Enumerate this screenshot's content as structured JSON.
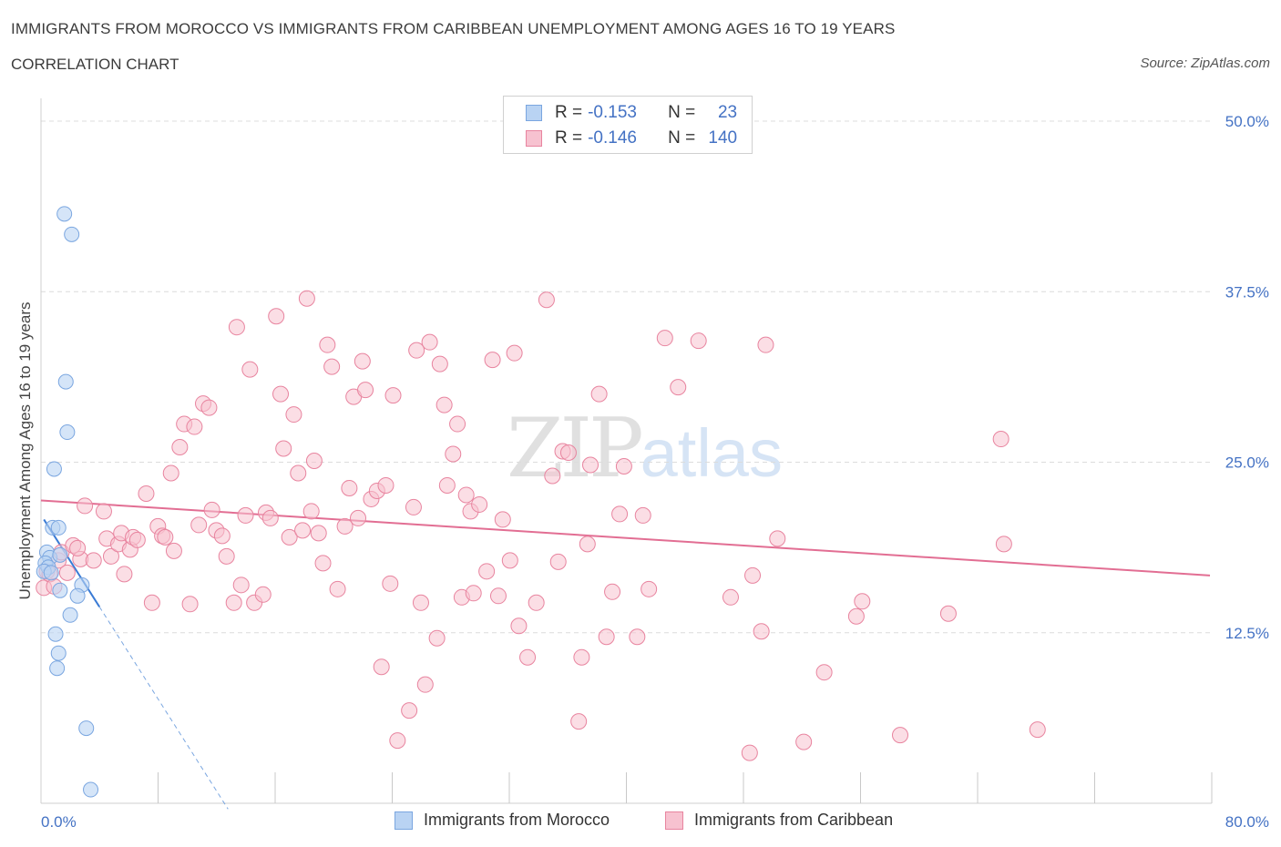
{
  "chart_data": {
    "type": "scatter",
    "title": "IMMIGRANTS FROM MOROCCO VS IMMIGRANTS FROM CARIBBEAN UNEMPLOYMENT AMONG AGES 16 TO 19 YEARS",
    "subtitle": "CORRELATION CHART",
    "source": "Source: ZipAtlas.com",
    "ylabel": "Unemployment Among Ages 16 to 19 years",
    "xlim": [
      0,
      80
    ],
    "ylim": [
      0,
      50
    ],
    "y_ticks": [
      {
        "value": 12.5,
        "label": "12.5%"
      },
      {
        "value": 25,
        "label": "25.0%"
      },
      {
        "value": 37.5,
        "label": "37.5%"
      },
      {
        "value": 50,
        "label": "50.0%"
      }
    ],
    "x_tick_labels": {
      "min": "0.0%",
      "max": "80.0%"
    },
    "watermark": {
      "zip": "ZIP",
      "atlas": "atlas"
    },
    "legend": [
      {
        "r_label": "R =",
        "r_value": "-0.153",
        "n_label": "N =",
        "n_value": "23"
      },
      {
        "r_label": "R =",
        "r_value": "-0.146",
        "n_label": "N =",
        "n_value": "140"
      }
    ],
    "series": [
      {
        "name": "Immigrants from Morocco",
        "color": "#7aa6e0",
        "fill": "#b9d3f3",
        "trend": {
          "x0": 0.2,
          "y0": 20.8,
          "x1": 4.0,
          "y1": 14.4,
          "dash_to_x": 12.8
        },
        "points": [
          {
            "x": 1.6,
            "y": 43.2
          },
          {
            "x": 2.1,
            "y": 41.7
          },
          {
            "x": 1.7,
            "y": 30.9
          },
          {
            "x": 1.8,
            "y": 27.2
          },
          {
            "x": 0.9,
            "y": 24.5
          },
          {
            "x": 0.8,
            "y": 20.2
          },
          {
            "x": 1.2,
            "y": 20.2
          },
          {
            "x": 0.4,
            "y": 18.4
          },
          {
            "x": 0.6,
            "y": 18.0
          },
          {
            "x": 0.3,
            "y": 17.6
          },
          {
            "x": 0.5,
            "y": 17.3
          },
          {
            "x": 0.2,
            "y": 17.0
          },
          {
            "x": 0.7,
            "y": 16.9
          },
          {
            "x": 2.8,
            "y": 16.0
          },
          {
            "x": 1.3,
            "y": 15.6
          },
          {
            "x": 2.5,
            "y": 15.2
          },
          {
            "x": 2.0,
            "y": 13.8
          },
          {
            "x": 1.0,
            "y": 12.4
          },
          {
            "x": 1.2,
            "y": 11.0
          },
          {
            "x": 1.1,
            "y": 9.9
          },
          {
            "x": 3.1,
            "y": 5.5
          },
          {
            "x": 3.4,
            "y": 1.0
          },
          {
            "x": 1.3,
            "y": 18.2
          }
        ]
      },
      {
        "name": "Immigrants from Caribbean",
        "color": "#e8849f",
        "fill": "#f7c2d0",
        "trend": {
          "x0": 0,
          "y0": 22.2,
          "x1": 80,
          "y1": 16.7
        },
        "points": [
          {
            "x": 0.2,
            "y": 15.8
          },
          {
            "x": 0.4,
            "y": 17.0
          },
          {
            "x": 0.6,
            "y": 16.8
          },
          {
            "x": 1.2,
            "y": 17.8
          },
          {
            "x": 1.4,
            "y": 18.4
          },
          {
            "x": 1.8,
            "y": 16.9
          },
          {
            "x": 2.2,
            "y": 18.9
          },
          {
            "x": 2.7,
            "y": 17.9
          },
          {
            "x": 3.0,
            "y": 21.8
          },
          {
            "x": 3.6,
            "y": 17.8
          },
          {
            "x": 4.3,
            "y": 21.4
          },
          {
            "x": 4.5,
            "y": 19.4
          },
          {
            "x": 4.8,
            "y": 18.1
          },
          {
            "x": 5.3,
            "y": 19.0
          },
          {
            "x": 5.5,
            "y": 19.8
          },
          {
            "x": 5.7,
            "y": 16.8
          },
          {
            "x": 6.1,
            "y": 18.6
          },
          {
            "x": 6.3,
            "y": 19.5
          },
          {
            "x": 6.6,
            "y": 19.3
          },
          {
            "x": 7.2,
            "y": 22.7
          },
          {
            "x": 7.6,
            "y": 14.7
          },
          {
            "x": 8.0,
            "y": 20.3
          },
          {
            "x": 8.3,
            "y": 19.6
          },
          {
            "x": 8.5,
            "y": 19.5
          },
          {
            "x": 8.9,
            "y": 24.2
          },
          {
            "x": 9.1,
            "y": 18.5
          },
          {
            "x": 9.5,
            "y": 26.1
          },
          {
            "x": 9.8,
            "y": 27.8
          },
          {
            "x": 10.2,
            "y": 14.6
          },
          {
            "x": 10.5,
            "y": 27.6
          },
          {
            "x": 10.8,
            "y": 20.4
          },
          {
            "x": 11.1,
            "y": 29.3
          },
          {
            "x": 11.5,
            "y": 29.0
          },
          {
            "x": 11.7,
            "y": 21.5
          },
          {
            "x": 12.0,
            "y": 20.0
          },
          {
            "x": 12.4,
            "y": 19.6
          },
          {
            "x": 12.7,
            "y": 18.1
          },
          {
            "x": 13.2,
            "y": 14.7
          },
          {
            "x": 13.4,
            "y": 34.9
          },
          {
            "x": 13.7,
            "y": 16.0
          },
          {
            "x": 14.0,
            "y": 21.1
          },
          {
            "x": 14.3,
            "y": 31.8
          },
          {
            "x": 14.6,
            "y": 14.7
          },
          {
            "x": 15.2,
            "y": 15.3
          },
          {
            "x": 15.4,
            "y": 21.3
          },
          {
            "x": 15.7,
            "y": 20.9
          },
          {
            "x": 16.1,
            "y": 35.7
          },
          {
            "x": 16.4,
            "y": 30.0
          },
          {
            "x": 16.6,
            "y": 26.0
          },
          {
            "x": 17.0,
            "y": 19.5
          },
          {
            "x": 17.3,
            "y": 28.5
          },
          {
            "x": 17.6,
            "y": 24.2
          },
          {
            "x": 17.9,
            "y": 20.0
          },
          {
            "x": 18.2,
            "y": 37.0
          },
          {
            "x": 18.5,
            "y": 21.4
          },
          {
            "x": 18.7,
            "y": 25.1
          },
          {
            "x": 19.0,
            "y": 19.8
          },
          {
            "x": 19.3,
            "y": 17.6
          },
          {
            "x": 19.6,
            "y": 33.6
          },
          {
            "x": 19.9,
            "y": 32.0
          },
          {
            "x": 20.3,
            "y": 15.7
          },
          {
            "x": 20.8,
            "y": 20.3
          },
          {
            "x": 21.1,
            "y": 23.1
          },
          {
            "x": 21.4,
            "y": 29.8
          },
          {
            "x": 21.7,
            "y": 20.9
          },
          {
            "x": 22.0,
            "y": 32.4
          },
          {
            "x": 22.2,
            "y": 30.3
          },
          {
            "x": 22.6,
            "y": 22.3
          },
          {
            "x": 23.0,
            "y": 22.9
          },
          {
            "x": 23.3,
            "y": 10.0
          },
          {
            "x": 23.6,
            "y": 23.3
          },
          {
            "x": 23.9,
            "y": 16.1
          },
          {
            "x": 24.1,
            "y": 29.9
          },
          {
            "x": 24.4,
            "y": 4.6
          },
          {
            "x": 25.2,
            "y": 6.8
          },
          {
            "x": 25.5,
            "y": 21.7
          },
          {
            "x": 25.7,
            "y": 33.2
          },
          {
            "x": 26.0,
            "y": 14.7
          },
          {
            "x": 26.3,
            "y": 8.7
          },
          {
            "x": 26.6,
            "y": 33.8
          },
          {
            "x": 27.1,
            "y": 12.1
          },
          {
            "x": 27.3,
            "y": 32.2
          },
          {
            "x": 27.6,
            "y": 29.2
          },
          {
            "x": 27.8,
            "y": 23.3
          },
          {
            "x": 28.2,
            "y": 25.6
          },
          {
            "x": 28.5,
            "y": 27.8
          },
          {
            "x": 28.8,
            "y": 15.1
          },
          {
            "x": 29.1,
            "y": 22.6
          },
          {
            "x": 29.4,
            "y": 21.4
          },
          {
            "x": 29.6,
            "y": 15.4
          },
          {
            "x": 30.0,
            "y": 21.9
          },
          {
            "x": 30.5,
            "y": 17.0
          },
          {
            "x": 30.9,
            "y": 32.5
          },
          {
            "x": 31.3,
            "y": 15.2
          },
          {
            "x": 31.6,
            "y": 20.8
          },
          {
            "x": 32.1,
            "y": 17.8
          },
          {
            "x": 32.4,
            "y": 33.0
          },
          {
            "x": 32.7,
            "y": 13.0
          },
          {
            "x": 33.3,
            "y": 10.7
          },
          {
            "x": 33.9,
            "y": 14.7
          },
          {
            "x": 34.6,
            "y": 36.9
          },
          {
            "x": 35.0,
            "y": 24.0
          },
          {
            "x": 35.4,
            "y": 17.7
          },
          {
            "x": 35.7,
            "y": 25.8
          },
          {
            "x": 36.1,
            "y": 25.7
          },
          {
            "x": 36.8,
            "y": 6.0
          },
          {
            "x": 37.0,
            "y": 10.7
          },
          {
            "x": 37.4,
            "y": 19.0
          },
          {
            "x": 37.6,
            "y": 24.8
          },
          {
            "x": 38.2,
            "y": 30.0
          },
          {
            "x": 38.7,
            "y": 12.2
          },
          {
            "x": 39.1,
            "y": 15.5
          },
          {
            "x": 39.6,
            "y": 21.2
          },
          {
            "x": 39.9,
            "y": 24.7
          },
          {
            "x": 40.8,
            "y": 12.2
          },
          {
            "x": 41.2,
            "y": 21.1
          },
          {
            "x": 41.6,
            "y": 15.7
          },
          {
            "x": 42.7,
            "y": 34.1
          },
          {
            "x": 43.6,
            "y": 30.5
          },
          {
            "x": 45.0,
            "y": 33.9
          },
          {
            "x": 47.2,
            "y": 15.1
          },
          {
            "x": 48.5,
            "y": 3.7
          },
          {
            "x": 48.7,
            "y": 16.7
          },
          {
            "x": 49.3,
            "y": 12.6
          },
          {
            "x": 49.6,
            "y": 33.6
          },
          {
            "x": 50.4,
            "y": 19.4
          },
          {
            "x": 52.2,
            "y": 4.5
          },
          {
            "x": 53.6,
            "y": 9.6
          },
          {
            "x": 55.8,
            "y": 13.7
          },
          {
            "x": 56.2,
            "y": 14.8
          },
          {
            "x": 58.8,
            "y": 5.0
          },
          {
            "x": 62.1,
            "y": 13.9
          },
          {
            "x": 65.7,
            "y": 26.7
          },
          {
            "x": 65.9,
            "y": 19.0
          },
          {
            "x": 68.2,
            "y": 5.4
          },
          {
            "x": 0.9,
            "y": 15.9
          },
          {
            "x": 2.5,
            "y": 18.7
          }
        ]
      }
    ]
  }
}
